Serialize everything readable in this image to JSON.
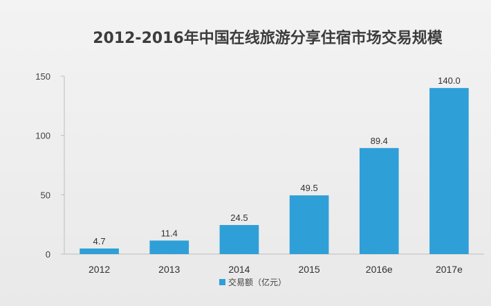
{
  "chart_data": {
    "type": "bar",
    "title": "2012-2016年中国在线旅游分享住宿市场交易规模",
    "categories": [
      "2012",
      "2013",
      "2014",
      "2015",
      "2016e",
      "2017e"
    ],
    "series": [
      {
        "name": "交易额（亿元）",
        "values": [
          4.7,
          11.4,
          24.5,
          49.5,
          89.4,
          140.0
        ],
        "labels": [
          "4.7",
          "11.4",
          "24.5",
          "49.5",
          "89.4",
          "140.0"
        ]
      }
    ],
    "ylim": [
      0,
      150
    ],
    "yticks": [
      0,
      50,
      100,
      150
    ],
    "grid": false,
    "legend_position": "bottom",
    "bar_color": "#2f9fd8",
    "axis_color": "#bdbdbd"
  }
}
